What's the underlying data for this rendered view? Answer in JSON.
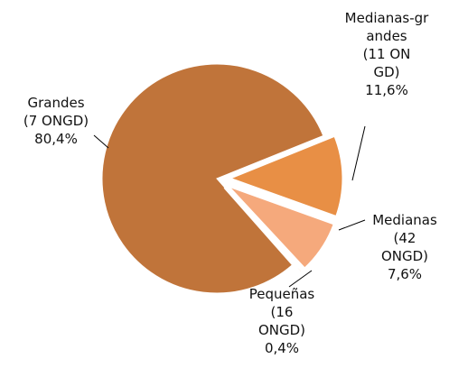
{
  "chart_data": {
    "type": "pie",
    "categories": [
      "Grandes",
      "Medianas-grandes",
      "Medianas",
      "Pequeñas"
    ],
    "count_labels": [
      "(7 ONGD)",
      "(11 ONGD)",
      "(42 ONGD)",
      "(16 ONGD)"
    ],
    "values": [
      80.4,
      11.6,
      7.6,
      0.4
    ],
    "value_labels": [
      "80,4%",
      "11,6%",
      "7,6%",
      "0,4%"
    ],
    "colors": [
      "#c0743a",
      "#e88f45",
      "#f5a97c",
      "#f8c2a0"
    ]
  }
}
